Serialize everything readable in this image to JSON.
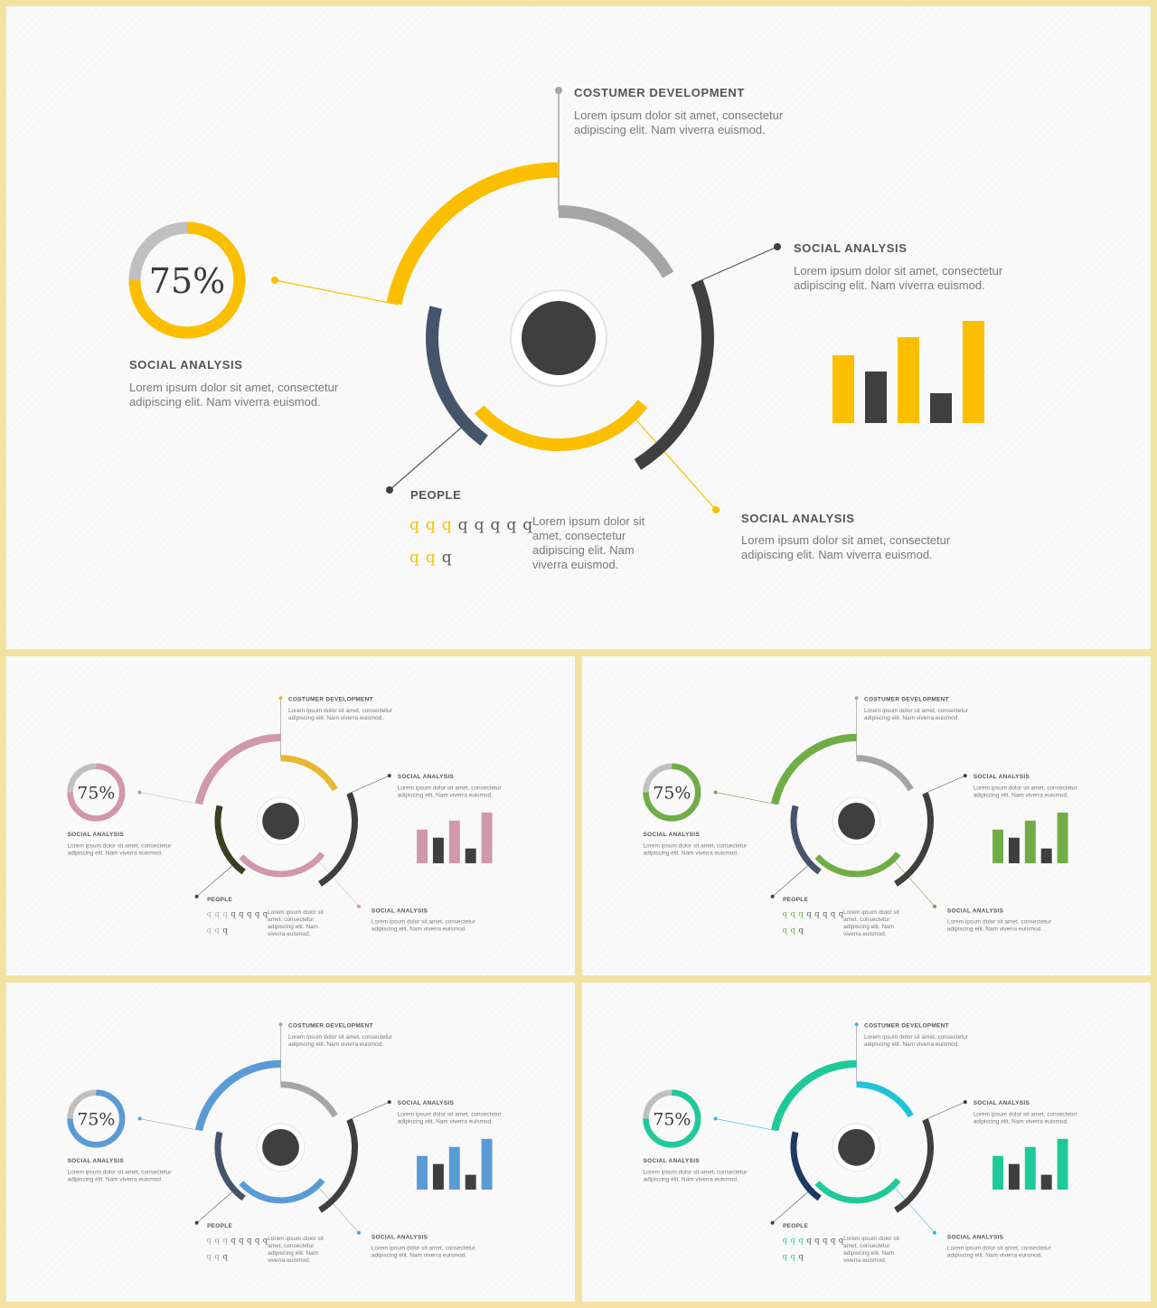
{
  "slides": [
    {
      "name": "yellow",
      "colors": {
        "outer": "#fbbf00",
        "inner_top": "#a5a5a5",
        "inner_left": "#44546a",
        "inner_bottom": "#fbbf00",
        "ring_bg": "#c0c0c0",
        "ring_fg": "#fbbf00",
        "bars_accent": "#fbbf00",
        "dot_left": "#fbbf00",
        "dot_top": "#a5a5a5",
        "dot_bottom": "#fbbf00",
        "line_left": "#fbbf00",
        "line_bottom": "#fbbf00",
        "person": "#fbbf00"
      }
    },
    {
      "name": "pink",
      "colors": {
        "outer": "#d197ac",
        "inner_top": "#e8b631",
        "inner_left": "#3c3e21",
        "inner_bottom": "#d197ac",
        "ring_bg": "#c0c0c0",
        "ring_fg": "#d197ac",
        "bars_accent": "#d197ac",
        "dot_left": "#a5a5a5",
        "dot_top": "#e8b631",
        "dot_bottom": "#d197ac",
        "line_left": "#c8c8c8",
        "line_bottom": "#c8c8c8",
        "person": "#b0b0b0"
      }
    },
    {
      "name": "green",
      "colors": {
        "outer": "#70ad47",
        "inner_top": "#a5a5a5",
        "inner_left": "#44546a",
        "inner_bottom": "#70ad47",
        "ring_bg": "#c0c0c0",
        "ring_fg": "#70ad47",
        "bars_accent": "#70ad47",
        "dot_left": "#9e8a54",
        "dot_top": "#a5a5a5",
        "dot_bottom": "#9e8a54",
        "line_left": "#9e8a54",
        "line_bottom": "#9e8a54",
        "person": "#70ad47"
      }
    },
    {
      "name": "blue",
      "colors": {
        "outer": "#5b9bd5",
        "inner_top": "#a5a5a5",
        "inner_left": "#44546a",
        "inner_bottom": "#5b9bd5",
        "ring_bg": "#c0c0c0",
        "ring_fg": "#5b9bd5",
        "bars_accent": "#5b9bd5",
        "dot_left": "#5b9bd5",
        "dot_top": "#a5a5a5",
        "dot_bottom": "#5b9bd5",
        "line_left": "#a5a5a5",
        "line_bottom": "#a5a5a5",
        "person": "#a5a5a5"
      }
    },
    {
      "name": "teal",
      "colors": {
        "outer": "#1fc99a",
        "inner_top": "#1fc3d9",
        "inner_left": "#1f3864",
        "inner_bottom": "#1fc99a",
        "ring_bg": "#c0c0c0",
        "ring_fg": "#1fc99a",
        "bars_accent": "#1fc99a",
        "dot_left": "#1fc3d9",
        "dot_top": "#1fc3d9",
        "dot_bottom": "#1fc3d9",
        "line_left": "#1fc3d9",
        "line_bottom": "#1fc3d9",
        "person": "#1fc99a"
      }
    }
  ],
  "content": {
    "percent": "75%",
    "percent_value": 75,
    "top": {
      "heading": "COSTUMER DEVELOPMENT",
      "text_line1": "Lorem ipsum dolor sit amet, consectetur",
      "text_line2": "adipiscing elit. Nam viverra euismod."
    },
    "right": {
      "heading": "SOCIAL ANALYSIS",
      "text_line1": "Lorem ipsum dolor sit amet, consectetur",
      "text_line2": "adipiscing elit. Nam viverra euismod."
    },
    "left": {
      "heading": "SOCIAL ANALYSIS",
      "text_line1": "Lorem ipsum dolor sit amet, consectetur",
      "text_line2": "adipiscing elit. Nam viverra euismod."
    },
    "bottom": {
      "heading": "SOCIAL ANALYSIS",
      "text_line1": "Lorem ipsum dolor sit amet, consectetur",
      "text_line2": "adipiscing elit. Nam viverra euismod."
    },
    "people": {
      "heading": "PEOPLE",
      "text_line1": "Lorem ipsum dolor sit",
      "text_line2": "amet, consectetur",
      "text_line3": "adipiscing elit. Nam",
      "text_line4": "viverra euismod.",
      "row1_highlighted": 3,
      "row1_total": 8,
      "row2_highlighted": 2,
      "row2_total": 3,
      "glyph": "q"
    },
    "bars": {
      "values": [
        75,
        57,
        95,
        33,
        113
      ],
      "accent_pattern": [
        "accent",
        "dark",
        "accent",
        "dark",
        "accent"
      ],
      "dark": "#3f3f3f"
    }
  },
  "neutral": {
    "dark": "#3f3f3f",
    "grey_line": "#8c8c8c",
    "person_grey": "#595959"
  }
}
